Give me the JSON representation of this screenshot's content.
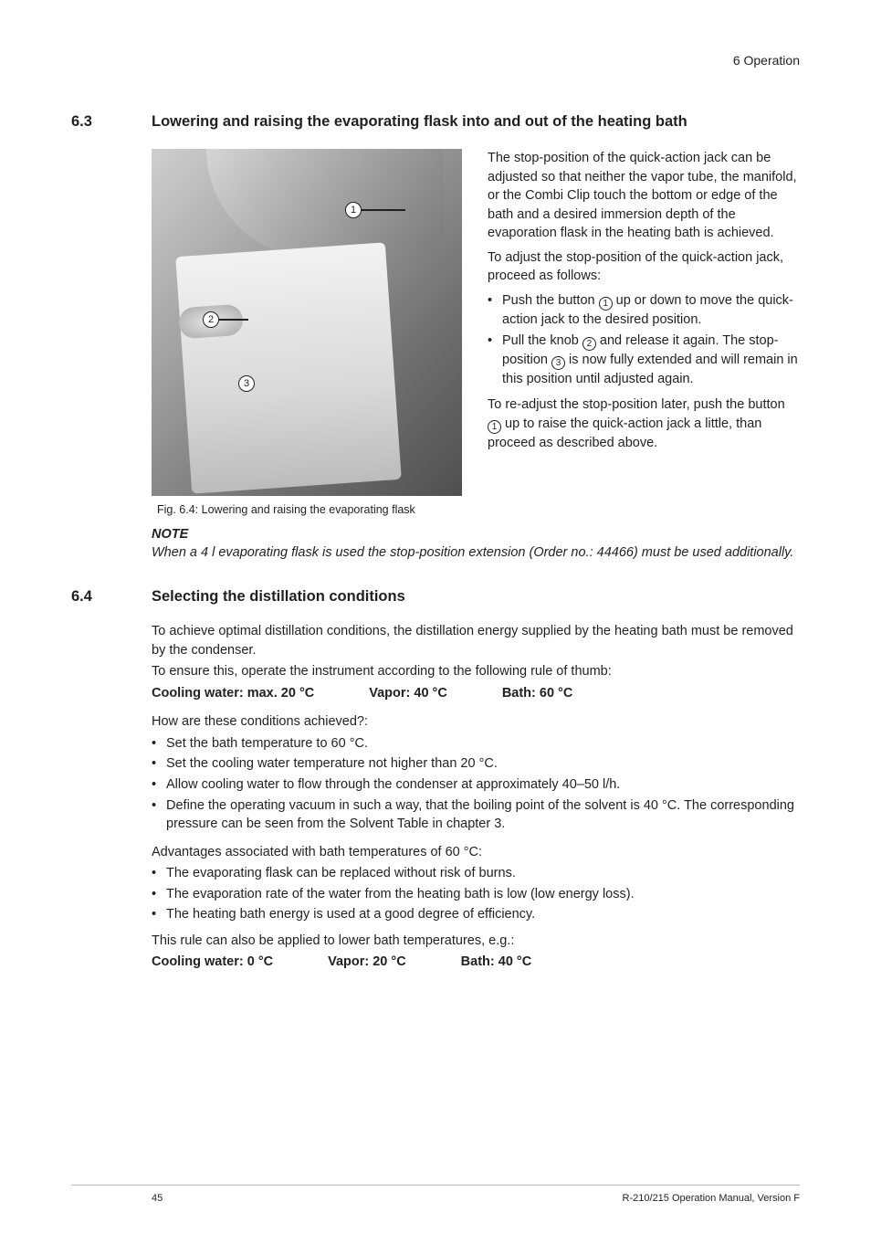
{
  "running_head": "6   Operation",
  "section_63": {
    "num": "6.3",
    "title": "Lowering and raising the evaporating flask into and out of the heating bath",
    "callouts": {
      "c1": "1",
      "c2": "2",
      "c3": "3"
    },
    "fig_caption": "Fig. 6.4: Lowering and raising the evaporating flask",
    "p1": "The stop-position of the quick-action jack can be adjusted so that neither the vapor tube, the manifold, or the Combi Clip touch the bottom or edge of the bath and a desired immersion depth of the evaporation flask in the heating bath is achieved.",
    "p2": "To adjust the stop-position of the quick-action jack, proceed as follows:",
    "b1a": "Push the button ",
    "b1b": " up or down to move the quick-action jack to the desired position.",
    "b2a": "Pull the knob ",
    "b2b": " and release it again. The stop-position ",
    "b2c": " is now fully extended and will remain in this position until adjusted again.",
    "p3a": "To re-adjust the stop-position later, push the button ",
    "p3b": " up to raise the quick-action jack a little, than proceed as described above.",
    "note_head": "NOTE",
    "note_body": "When a 4 l evaporating flask is used the stop-position extension (Order no.: 44466) must be used additionally."
  },
  "section_64": {
    "num": "6.4",
    "title": "Selecting the distillation conditions",
    "p1": "To achieve optimal distillation conditions, the distillation energy supplied by the heating bath must be removed by the condenser.",
    "p2": "To ensure this, operate the instrument according to the following rule of thumb:",
    "temps1": {
      "cool": "Cooling water: max. 20 °C",
      "vapor": "Vapor: 40 °C",
      "bath": "Bath: 60 °C"
    },
    "q": "How are these conditions achieved?:",
    "steps": [
      "Set the bath temperature to 60 °C.",
      "Set the cooling water temperature not higher than 20 °C.",
      "Allow cooling water to flow through the condenser at approximately 40–50 l/h.",
      "Define the operating vacuum in such a way, that the boiling point of the solvent is 40 °C. The corresponding pressure can be seen from the Solvent Table in chapter 3."
    ],
    "adv_head": "Advantages associated with bath temperatures of 60 °C:",
    "adv": [
      "The evaporating flask can be replaced without risk of burns.",
      "The evaporation rate of the water from the heating bath is low (low energy loss).",
      "The heating bath energy is used at a good degree of efficiency."
    ],
    "p3": "This rule can also be applied to lower bath temperatures, e.g.:",
    "temps2": {
      "cool": "Cooling water: 0 °C",
      "vapor": "Vapor: 20 °C",
      "bath": "Bath: 40 °C"
    }
  },
  "footer": {
    "page": "45",
    "doc": "R-210/215 Operation Manual, Version F"
  }
}
